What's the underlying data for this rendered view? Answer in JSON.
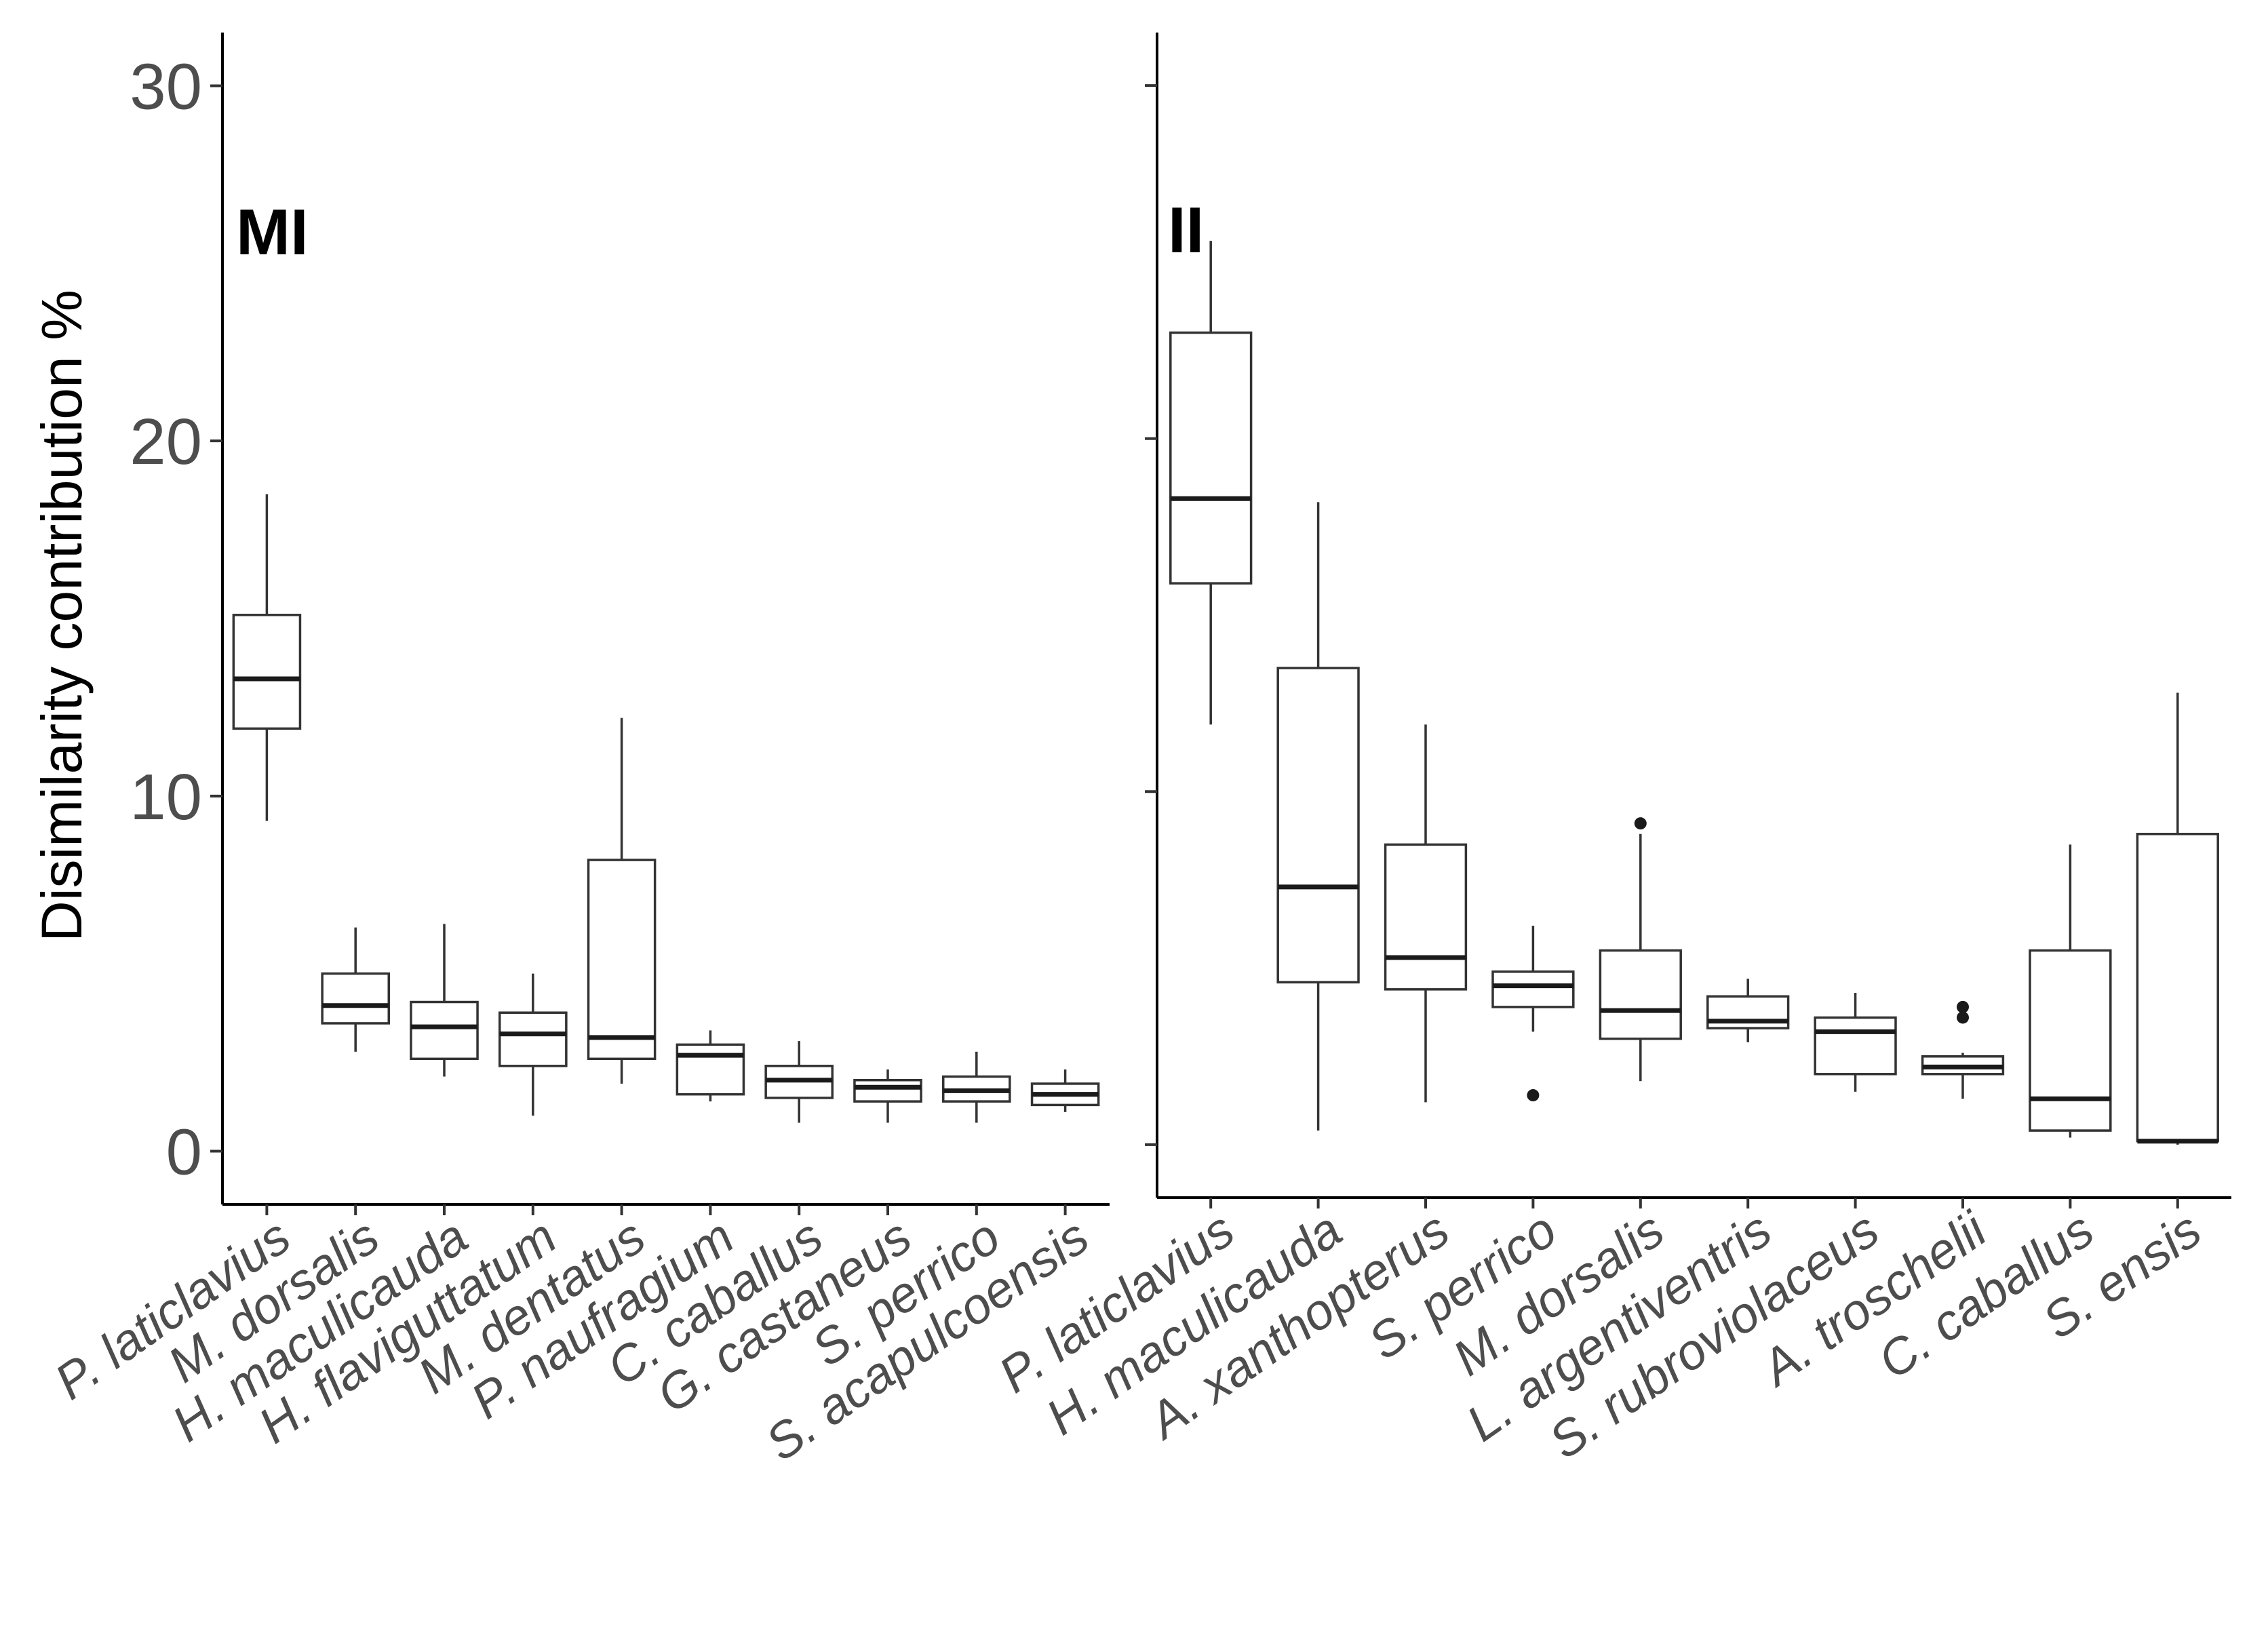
{
  "chart_data": {
    "type": "boxplot",
    "ylabel": "Disimilarity contribution %",
    "ylim": [
      -1.5,
      31.5
    ],
    "yticks": [
      0,
      10,
      20,
      30
    ],
    "colors": {
      "box_stroke": "#333333",
      "median": "#1a1a1a",
      "axis": "#000000",
      "tick_text": "#4d4d4d"
    },
    "panels": [
      {
        "label": "MI",
        "show_tick_labels": true,
        "categories": [
          {
            "name": "P. laticlavius",
            "q1": 11.9,
            "median": 13.3,
            "q3": 15.1,
            "lo": 9.3,
            "hi": 18.5,
            "outliers": []
          },
          {
            "name": "M. dorsalis",
            "q1": 3.6,
            "median": 4.1,
            "q3": 5.0,
            "lo": 2.8,
            "hi": 6.3,
            "outliers": []
          },
          {
            "name": "H. maculicauda",
            "q1": 2.6,
            "median": 3.5,
            "q3": 4.2,
            "lo": 2.1,
            "hi": 6.4,
            "outliers": []
          },
          {
            "name": "H. flaviguttatum",
            "q1": 2.4,
            "median": 3.3,
            "q3": 3.9,
            "lo": 1.0,
            "hi": 5.0,
            "outliers": []
          },
          {
            "name": "M. dentatus",
            "q1": 2.6,
            "median": 3.2,
            "q3": 8.2,
            "lo": 1.9,
            "hi": 12.2,
            "outliers": []
          },
          {
            "name": "P. naufragium",
            "q1": 1.6,
            "median": 2.7,
            "q3": 3.0,
            "lo": 1.4,
            "hi": 3.4,
            "outliers": []
          },
          {
            "name": "C. caballus",
            "q1": 1.5,
            "median": 2.0,
            "q3": 2.4,
            "lo": 0.8,
            "hi": 3.1,
            "outliers": []
          },
          {
            "name": "G. castaneus",
            "q1": 1.4,
            "median": 1.8,
            "q3": 2.0,
            "lo": 0.8,
            "hi": 2.3,
            "outliers": []
          },
          {
            "name": "S. perrico",
            "q1": 1.4,
            "median": 1.7,
            "q3": 2.1,
            "lo": 0.8,
            "hi": 2.8,
            "outliers": []
          },
          {
            "name": "S. acapulcoensis",
            "q1": 1.3,
            "median": 1.6,
            "q3": 1.9,
            "lo": 1.1,
            "hi": 2.3,
            "outliers": []
          }
        ]
      },
      {
        "label": "II",
        "show_tick_labels": false,
        "categories": [
          {
            "name": "P. laticlavius",
            "q1": 15.9,
            "median": 18.3,
            "q3": 23.0,
            "lo": 11.9,
            "hi": 25.6,
            "outliers": []
          },
          {
            "name": "H. maculicauda",
            "q1": 4.6,
            "median": 7.3,
            "q3": 13.5,
            "lo": 0.4,
            "hi": 18.2,
            "outliers": []
          },
          {
            "name": "A. xanthopterus",
            "q1": 4.4,
            "median": 5.3,
            "q3": 8.5,
            "lo": 1.2,
            "hi": 11.9,
            "outliers": []
          },
          {
            "name": "S. perrico",
            "q1": 3.9,
            "median": 4.5,
            "q3": 4.9,
            "lo": 3.2,
            "hi": 6.2,
            "outliers": [
              1.4
            ]
          },
          {
            "name": "M. dorsalis",
            "q1": 3.0,
            "median": 3.8,
            "q3": 5.5,
            "lo": 1.8,
            "hi": 8.8,
            "outliers": [
              9.1
            ]
          },
          {
            "name": "L. argentiventris",
            "q1": 3.3,
            "median": 3.5,
            "q3": 4.2,
            "lo": 2.9,
            "hi": 4.7,
            "outliers": []
          },
          {
            "name": "S. rubroviolaceus",
            "q1": 2.0,
            "median": 3.2,
            "q3": 3.6,
            "lo": 1.5,
            "hi": 4.3,
            "outliers": []
          },
          {
            "name": "A. troschelii",
            "q1": 2.0,
            "median": 2.2,
            "q3": 2.5,
            "lo": 1.3,
            "hi": 2.6,
            "outliers": [
              3.6,
              3.9
            ]
          },
          {
            "name": "C. caballus",
            "q1": 0.4,
            "median": 1.3,
            "q3": 5.5,
            "lo": 0.2,
            "hi": 8.5,
            "outliers": []
          },
          {
            "name": "S. ensis",
            "q1": 0.1,
            "median": 0.1,
            "q3": 8.8,
            "lo": 0.0,
            "hi": 12.8,
            "outliers": []
          }
        ]
      }
    ]
  }
}
